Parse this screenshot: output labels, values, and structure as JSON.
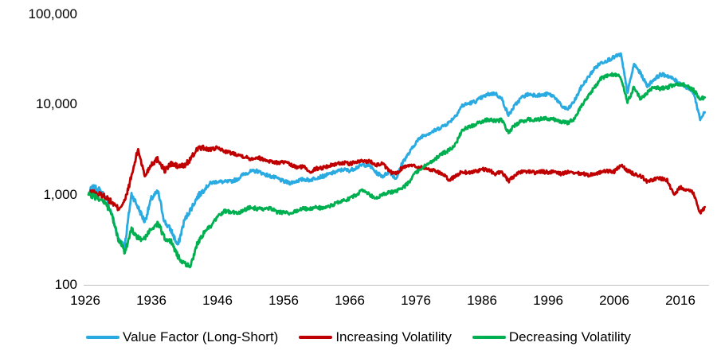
{
  "chart_data": {
    "type": "line",
    "title": "",
    "background": "#FFFFFF",
    "text_color": "#000000",
    "axis_line_color": "#BFBFBF",
    "legend_position": "bottom",
    "y_axis": {
      "scale": "log",
      "range": [
        100,
        100000
      ],
      "gridlines": false,
      "ticks": [
        {
          "label": "100,000",
          "value": 100000
        },
        {
          "label": "10,000",
          "value": 10000
        },
        {
          "label": "1,000",
          "value": 1000
        },
        {
          "label": "100",
          "value": 100
        }
      ]
    },
    "x_axis": {
      "range": [
        1926,
        2020
      ],
      "ticks": [
        {
          "label": "1926",
          "year": 1926
        },
        {
          "label": "1936",
          "year": 1936
        },
        {
          "label": "1946",
          "year": 1946
        },
        {
          "label": "1956",
          "year": 1956
        },
        {
          "label": "1966",
          "year": 1966
        },
        {
          "label": "1976",
          "year": 1976
        },
        {
          "label": "1986",
          "year": 1986
        },
        {
          "label": "1996",
          "year": 1996
        },
        {
          "label": "2006",
          "year": 2006
        },
        {
          "label": "2016",
          "year": 2016
        }
      ]
    },
    "x_years": [
      1926.5,
      1927,
      1928,
      1929,
      1930,
      1931,
      1932,
      1933,
      1934,
      1935,
      1936,
      1937,
      1938,
      1939,
      1940,
      1941,
      1942,
      1943,
      1944,
      1945,
      1946,
      1947,
      1948,
      1949,
      1950,
      1951,
      1952,
      1953,
      1954,
      1955,
      1956,
      1957,
      1958,
      1959,
      1960,
      1961,
      1962,
      1963,
      1964,
      1965,
      1966,
      1967,
      1968,
      1969,
      1970,
      1971,
      1972,
      1973,
      1974,
      1975,
      1976,
      1977,
      1978,
      1979,
      1980,
      1981,
      1982,
      1983,
      1984,
      1985,
      1986,
      1987,
      1988,
      1989,
      1990,
      1991,
      1992,
      1993,
      1994,
      1995,
      1996,
      1997,
      1998,
      1999,
      2000,
      2001,
      2002,
      2003,
      2004,
      2005,
      2006,
      2007,
      2008,
      2009,
      2010,
      2011,
      2012,
      2013,
      2014,
      2015,
      2016,
      2017,
      2018,
      2019,
      2019.7
    ],
    "series": [
      {
        "name": "Value Factor (Long-Short)",
        "color": "#29ABE2",
        "values": [
          1000,
          1200,
          1150,
          950,
          620,
          320,
          280,
          1020,
          720,
          500,
          900,
          1080,
          500,
          400,
          270,
          520,
          700,
          950,
          1150,
          1350,
          1400,
          1380,
          1400,
          1480,
          1700,
          1800,
          1830,
          1700,
          1600,
          1520,
          1400,
          1350,
          1420,
          1480,
          1450,
          1550,
          1600,
          1700,
          1800,
          1900,
          1850,
          2000,
          2150,
          2100,
          1750,
          1600,
          1800,
          1500,
          2300,
          2900,
          3800,
          4500,
          4800,
          5200,
          5700,
          6300,
          7500,
          9700,
          10300,
          10800,
          12000,
          13000,
          13300,
          11500,
          7600,
          9800,
          12000,
          13000,
          12800,
          12600,
          13100,
          12200,
          9600,
          8800,
          11000,
          15500,
          19700,
          25000,
          29000,
          31000,
          33500,
          36000,
          13500,
          28000,
          22000,
          16000,
          19000,
          21500,
          21000,
          19000,
          17000,
          15500,
          13500,
          6900,
          8200
        ]
      },
      {
        "name": "Increasing Volatility",
        "color": "#C00000",
        "values": [
          1000,
          1060,
          1010,
          960,
          820,
          700,
          850,
          1600,
          3200,
          1600,
          2200,
          2500,
          1850,
          2200,
          2050,
          2100,
          2500,
          3300,
          3250,
          3150,
          3300,
          3050,
          2900,
          2800,
          2650,
          2500,
          2600,
          2450,
          2350,
          2250,
          2300,
          2150,
          2000,
          2050,
          1800,
          1950,
          2000,
          2100,
          2200,
          2250,
          2200,
          2300,
          2350,
          2350,
          2150,
          2200,
          1800,
          1700,
          2000,
          2150,
          2050,
          2000,
          1900,
          1850,
          1700,
          1450,
          1600,
          1800,
          1750,
          1820,
          1900,
          1870,
          1700,
          1800,
          1400,
          1650,
          1780,
          1820,
          1750,
          1800,
          1760,
          1820,
          1700,
          1780,
          1700,
          1720,
          1650,
          1700,
          1780,
          1820,
          1800,
          2100,
          1850,
          1700,
          1620,
          1400,
          1480,
          1520,
          1450,
          1000,
          1200,
          1150,
          1050,
          620,
          730
        ]
      },
      {
        "name": "Decreasing Volatility",
        "color": "#00B050",
        "values": [
          1000,
          970,
          920,
          820,
          600,
          320,
          230,
          420,
          330,
          320,
          420,
          480,
          330,
          300,
          210,
          170,
          165,
          290,
          390,
          450,
          560,
          660,
          640,
          620,
          680,
          720,
          700,
          680,
          710,
          640,
          630,
          620,
          660,
          700,
          690,
          730,
          700,
          750,
          800,
          860,
          900,
          1000,
          1120,
          1000,
          900,
          1000,
          1060,
          1100,
          1170,
          1400,
          1750,
          2000,
          2250,
          2500,
          2850,
          3100,
          3600,
          5200,
          5600,
          6000,
          6500,
          6800,
          6600,
          6700,
          4900,
          5900,
          6500,
          6800,
          6800,
          6900,
          7000,
          6800,
          6400,
          6300,
          7000,
          9500,
          12000,
          15500,
          19500,
          21000,
          21500,
          20000,
          10500,
          15500,
          11500,
          13500,
          15500,
          15000,
          15500,
          16500,
          17000,
          16000,
          14500,
          11500,
          12000
        ]
      }
    ]
  }
}
